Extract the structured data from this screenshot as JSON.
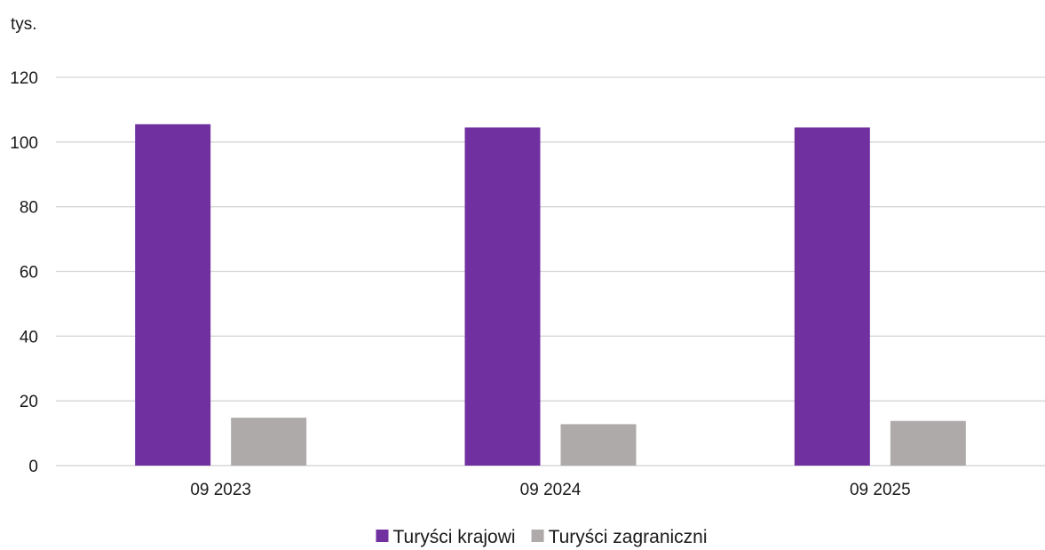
{
  "chart_data": {
    "type": "bar",
    "unit_label": "tys.",
    "categories": [
      "09 2023",
      "09 2024",
      "09 2025"
    ],
    "series": [
      {
        "name": "Turyści krajowi",
        "color": "#7030a0",
        "values": [
          105.5,
          104.5,
          104.5
        ]
      },
      {
        "name": "Turyści zagraniczni",
        "color": "#aeaaaa",
        "values": [
          14.8,
          12.8,
          13.8
        ]
      }
    ],
    "y_ticks": [
      "0",
      "20",
      "40",
      "60",
      "80",
      "100",
      "120"
    ],
    "ylim": [
      0,
      120
    ],
    "grid": true,
    "legend_position": "bottom"
  }
}
